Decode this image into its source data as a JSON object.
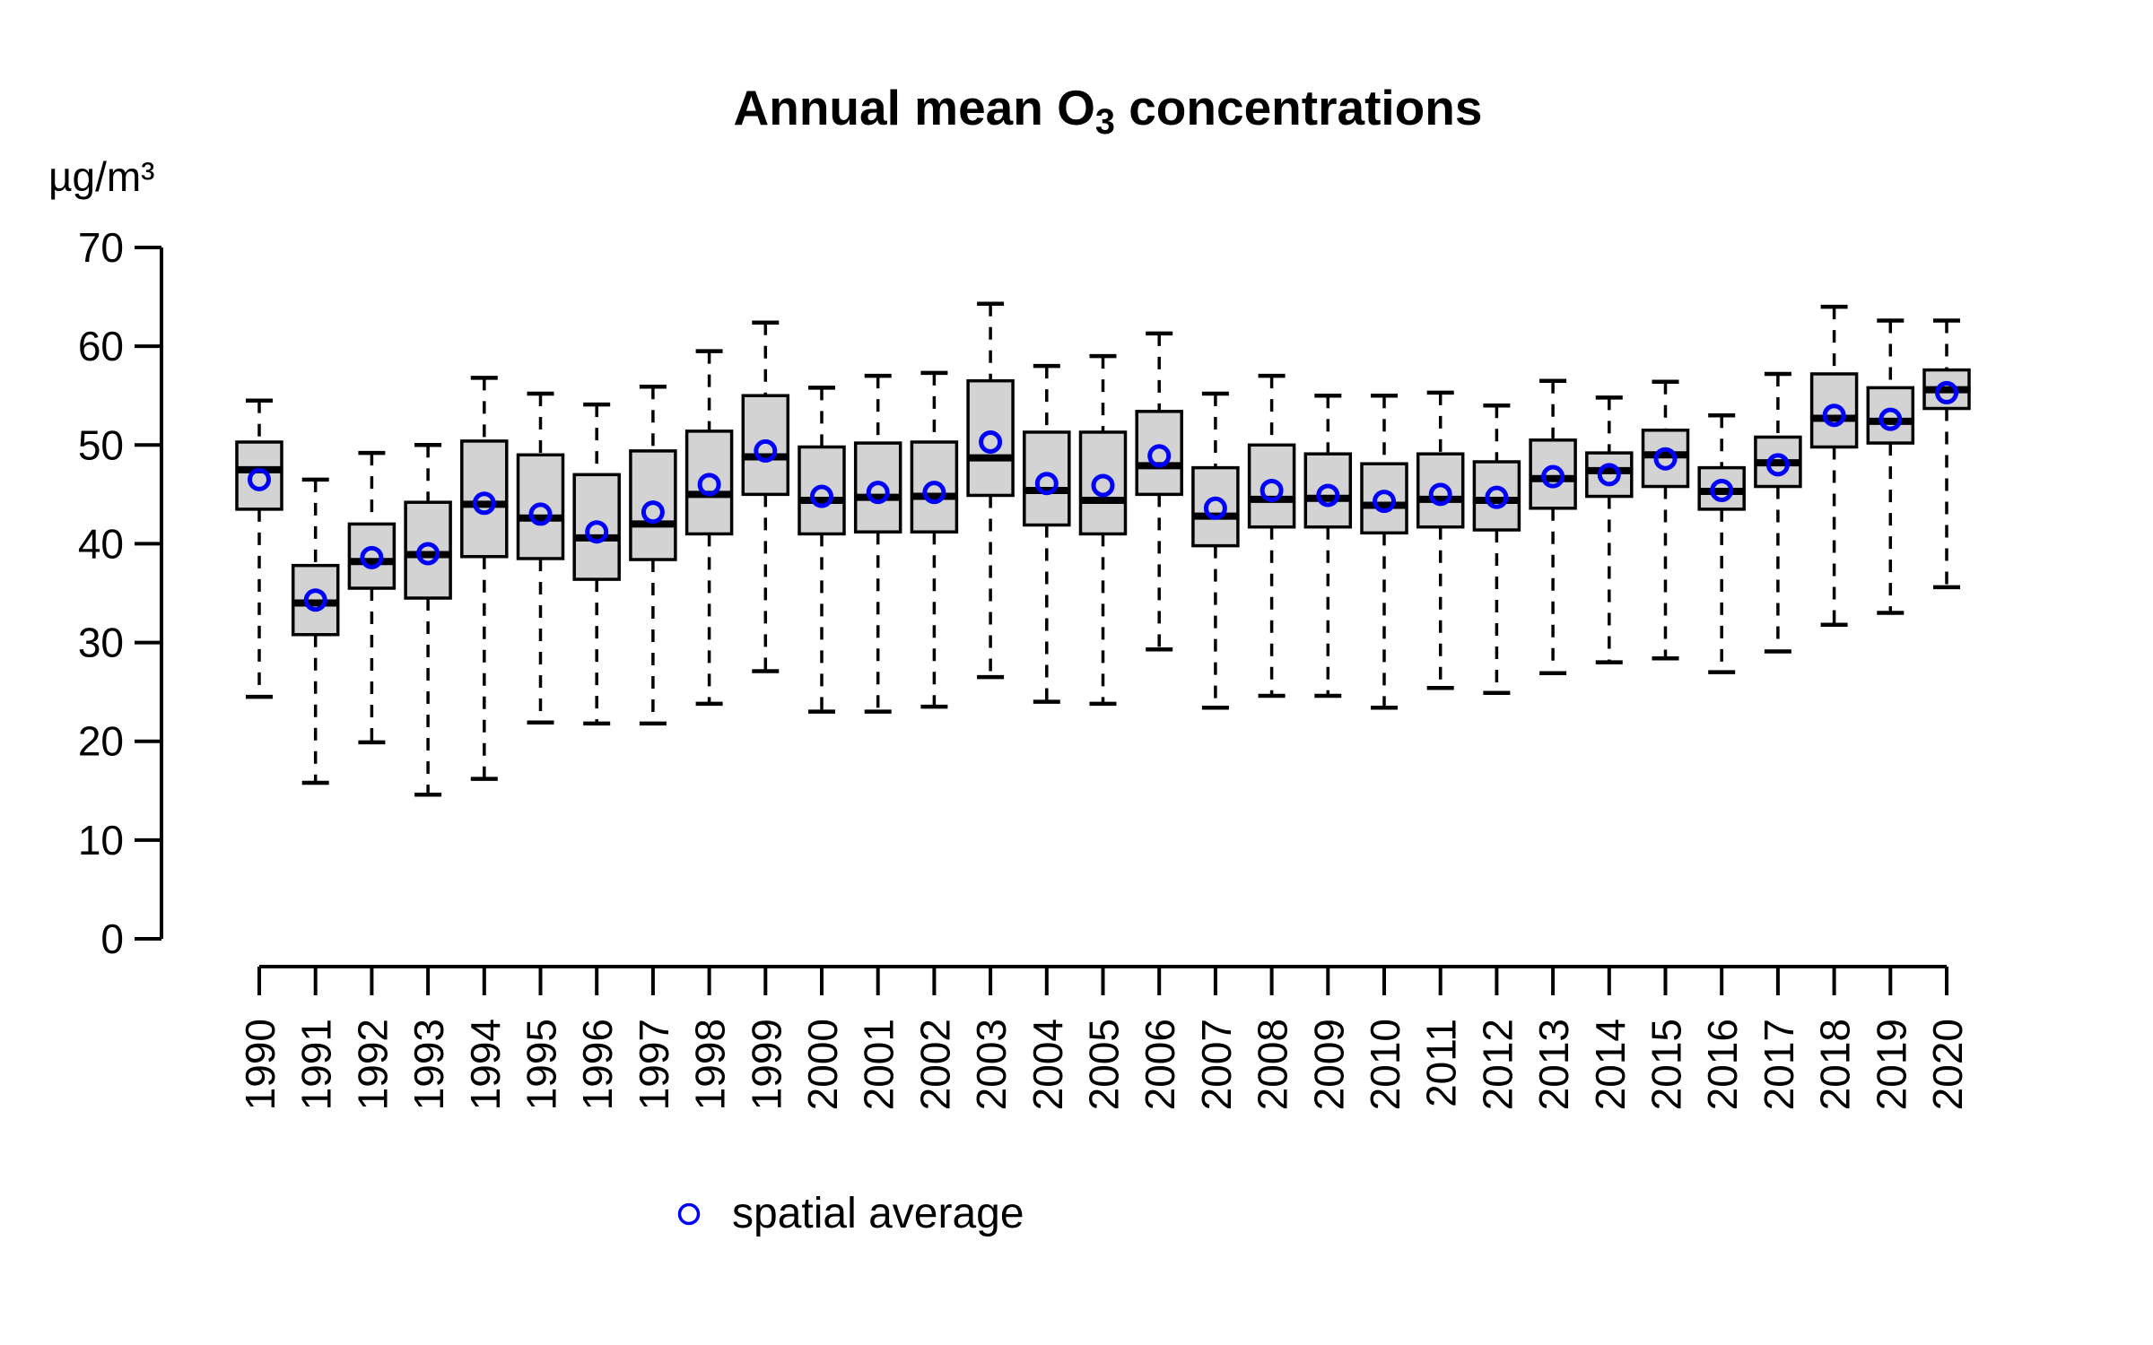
{
  "title": {
    "prefix": "Annual mean O",
    "subscript": "3",
    "suffix": " concentrations"
  },
  "y_axis_unit": "µg/m³",
  "legend": {
    "label": "spatial average",
    "marker": "open-circle"
  },
  "colors": {
    "box_fill": "#d3d3d3",
    "box_border": "#000000",
    "median_line": "#000000",
    "whisker": "#000000",
    "mean_marker": "#0000ff",
    "axis": "#000000",
    "text": "#000000",
    "background": "#ffffff"
  },
  "chart_data": {
    "type": "boxplot",
    "title": "Annual mean O3 concentrations",
    "ylabel": "µg/m³",
    "xlabel": "",
    "ylim": [
      0,
      70
    ],
    "yticks": [
      0,
      10,
      20,
      30,
      40,
      50,
      60,
      70
    ],
    "grid": false,
    "legend_position": "bottom-center",
    "legend_entries": [
      "spatial average"
    ],
    "mean_series_name": "spatial average",
    "boxes": [
      {
        "year": "1990",
        "low": 24.5,
        "q1": 43.5,
        "median": 47.5,
        "q3": 50.3,
        "high": 54.5,
        "mean": 46.5
      },
      {
        "year": "1991",
        "low": 15.8,
        "q1": 30.8,
        "median": 34.0,
        "q3": 37.8,
        "high": 46.5,
        "mean": 34.3
      },
      {
        "year": "1992",
        "low": 19.9,
        "q1": 35.5,
        "median": 38.2,
        "q3": 42.0,
        "high": 49.2,
        "mean": 38.6
      },
      {
        "year": "1993",
        "low": 14.6,
        "q1": 34.5,
        "median": 38.9,
        "q3": 44.2,
        "high": 50.0,
        "mean": 39.0
      },
      {
        "year": "1994",
        "low": 16.2,
        "q1": 38.7,
        "median": 44.0,
        "q3": 50.4,
        "high": 56.8,
        "mean": 44.1
      },
      {
        "year": "1995",
        "low": 21.9,
        "q1": 38.5,
        "median": 42.6,
        "q3": 49.0,
        "high": 55.2,
        "mean": 43.0
      },
      {
        "year": "1996",
        "low": 21.8,
        "q1": 36.4,
        "median": 40.6,
        "q3": 47.0,
        "high": 54.1,
        "mean": 41.2
      },
      {
        "year": "1997",
        "low": 21.8,
        "q1": 38.4,
        "median": 42.0,
        "q3": 49.4,
        "high": 55.9,
        "mean": 43.2
      },
      {
        "year": "1998",
        "low": 23.8,
        "q1": 41.0,
        "median": 45.0,
        "q3": 51.4,
        "high": 59.5,
        "mean": 46.0
      },
      {
        "year": "1999",
        "low": 27.1,
        "q1": 45.0,
        "median": 48.8,
        "q3": 55.0,
        "high": 62.4,
        "mean": 49.4
      },
      {
        "year": "2000",
        "low": 23.0,
        "q1": 41.0,
        "median": 44.4,
        "q3": 49.8,
        "high": 55.8,
        "mean": 44.8
      },
      {
        "year": "2001",
        "low": 23.0,
        "q1": 41.2,
        "median": 44.7,
        "q3": 50.2,
        "high": 57.0,
        "mean": 45.2
      },
      {
        "year": "2002",
        "low": 23.5,
        "q1": 41.2,
        "median": 44.8,
        "q3": 50.3,
        "high": 57.3,
        "mean": 45.2
      },
      {
        "year": "2003",
        "low": 26.5,
        "q1": 44.9,
        "median": 48.7,
        "q3": 56.5,
        "high": 64.3,
        "mean": 50.3
      },
      {
        "year": "2004",
        "low": 24.0,
        "q1": 41.9,
        "median": 45.4,
        "q3": 51.3,
        "high": 58.0,
        "mean": 46.1
      },
      {
        "year": "2005",
        "low": 23.8,
        "q1": 41.0,
        "median": 44.4,
        "q3": 51.3,
        "high": 59.0,
        "mean": 45.9
      },
      {
        "year": "2006",
        "low": 29.3,
        "q1": 45.0,
        "median": 47.9,
        "q3": 53.4,
        "high": 61.3,
        "mean": 48.9
      },
      {
        "year": "2007",
        "low": 23.4,
        "q1": 39.8,
        "median": 42.8,
        "q3": 47.7,
        "high": 55.2,
        "mean": 43.6
      },
      {
        "year": "2008",
        "low": 24.6,
        "q1": 41.7,
        "median": 44.5,
        "q3": 50.0,
        "high": 57.0,
        "mean": 45.4
      },
      {
        "year": "2009",
        "low": 24.6,
        "q1": 41.7,
        "median": 44.6,
        "q3": 49.1,
        "high": 55.0,
        "mean": 44.9
      },
      {
        "year": "2010",
        "low": 23.4,
        "q1": 41.1,
        "median": 43.9,
        "q3": 48.1,
        "high": 55.0,
        "mean": 44.3
      },
      {
        "year": "2011",
        "low": 25.4,
        "q1": 41.7,
        "median": 44.5,
        "q3": 49.1,
        "high": 55.3,
        "mean": 45.0
      },
      {
        "year": "2012",
        "low": 24.9,
        "q1": 41.4,
        "median": 44.4,
        "q3": 48.3,
        "high": 54.0,
        "mean": 44.7
      },
      {
        "year": "2013",
        "low": 26.9,
        "q1": 43.6,
        "median": 46.6,
        "q3": 50.5,
        "high": 56.5,
        "mean": 46.8
      },
      {
        "year": "2014",
        "low": 28.0,
        "q1": 44.8,
        "median": 47.4,
        "q3": 49.2,
        "high": 54.8,
        "mean": 47.0
      },
      {
        "year": "2015",
        "low": 28.4,
        "q1": 45.8,
        "median": 49.0,
        "q3": 51.5,
        "high": 56.4,
        "mean": 48.6
      },
      {
        "year": "2016",
        "low": 27.0,
        "q1": 43.5,
        "median": 45.3,
        "q3": 47.7,
        "high": 53.0,
        "mean": 45.4
      },
      {
        "year": "2017",
        "low": 29.1,
        "q1": 45.8,
        "median": 48.2,
        "q3": 50.8,
        "high": 57.2,
        "mean": 48.0
      },
      {
        "year": "2018",
        "low": 31.8,
        "q1": 49.8,
        "median": 52.7,
        "q3": 57.2,
        "high": 64.0,
        "mean": 53.0
      },
      {
        "year": "2019",
        "low": 33.0,
        "q1": 50.2,
        "median": 52.4,
        "q3": 55.8,
        "high": 62.6,
        "mean": 52.6
      },
      {
        "year": "2020",
        "low": 35.6,
        "q1": 53.7,
        "median": 55.6,
        "q3": 57.6,
        "high": 62.6,
        "mean": 55.3
      }
    ]
  }
}
